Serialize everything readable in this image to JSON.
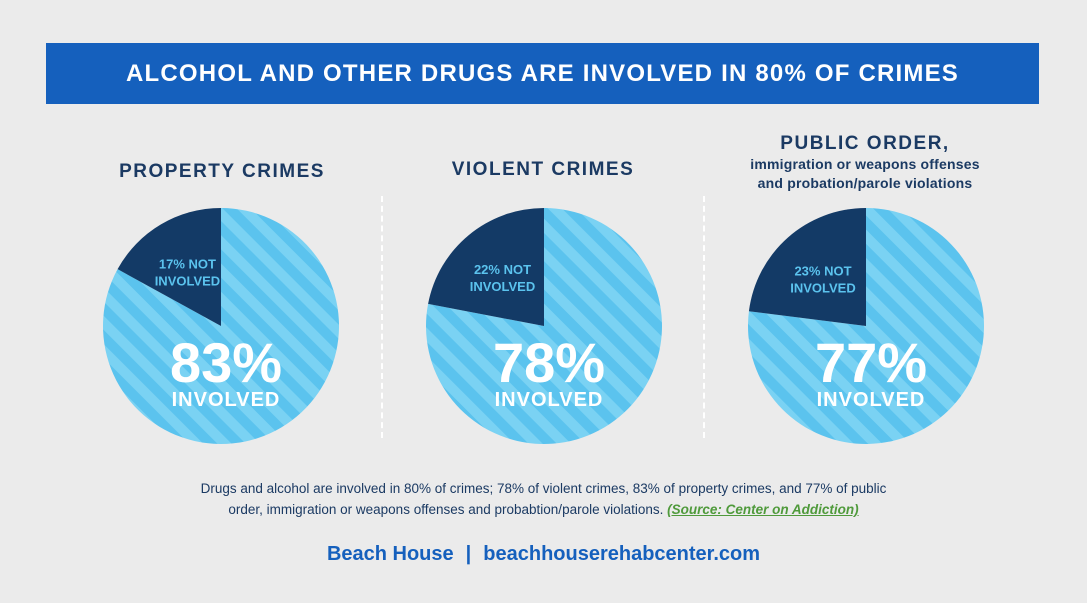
{
  "header": {
    "title": "ALCOHOL AND OTHER DRUGS ARE INVOLVED IN 80% OF CRIMES"
  },
  "colors": {
    "banner": "#1560bd",
    "involved": "#5bc3ee",
    "stripe": "#7ad2f3",
    "not_involved": "#133a66",
    "text_dark": "#1b3a63",
    "source_link": "#4f9a3b"
  },
  "chart_data": [
    {
      "type": "pie",
      "title": "PROPERTY CRIMES",
      "subtitle": "",
      "slices": [
        {
          "label": "INVOLVED",
          "value": 83,
          "display": "83%"
        },
        {
          "label": "NOT INVOLVED",
          "value": 17,
          "display": "17% NOT"
        }
      ]
    },
    {
      "type": "pie",
      "title": "VIOLENT CRIMES",
      "subtitle": "",
      "slices": [
        {
          "label": "INVOLVED",
          "value": 78,
          "display": "78%"
        },
        {
          "label": "NOT INVOLVED",
          "value": 22,
          "display": "22% NOT"
        }
      ]
    },
    {
      "type": "pie",
      "title": "PUBLIC ORDER,",
      "subtitle": "immigration or weapons offenses",
      "subtitle2": "and probation/parole violations",
      "slices": [
        {
          "label": "INVOLVED",
          "value": 77,
          "display": "77%"
        },
        {
          "label": "NOT INVOLVED",
          "value": 23,
          "display": "23% NOT"
        }
      ]
    }
  ],
  "caption": {
    "line1": "Drugs and alcohol are involved in 80% of crimes; 78% of violent crimes, 83% of property crimes, and 77% of public",
    "line2": "order, immigration or weapons offenses and probabtion/parole violations.",
    "source": "(Source: Center on Addiction)"
  },
  "footer": {
    "brand": "Beach House",
    "separator": "|",
    "url": "beachhouserehabcenter.com"
  }
}
